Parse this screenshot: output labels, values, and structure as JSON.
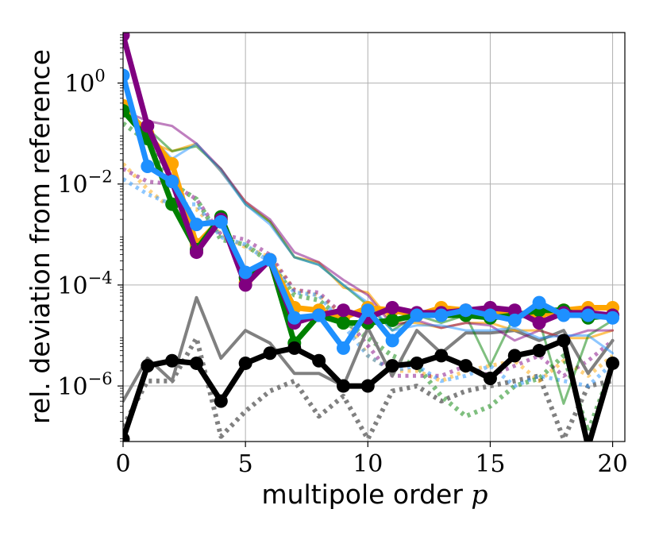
{
  "chart_data": {
    "type": "line",
    "xlabel": "multipole order",
    "xlabel_variable": "p",
    "ylabel": "rel. deviation from reference",
    "yscale": "log",
    "xlim": [
      0,
      20.5
    ],
    "ylim_log10": [
      -7.1,
      1.0
    ],
    "grid": true,
    "x_ticks": [
      0,
      5,
      10,
      15,
      20
    ],
    "x_tick_labels": [
      "0",
      "5",
      "10",
      "15",
      "20"
    ],
    "y_ticks_log10": [
      0,
      -2,
      -4,
      -6
    ],
    "y_tick_labels": [
      {
        "base": "10",
        "exp": "0"
      },
      {
        "base": "10",
        "exp": "−2"
      },
      {
        "base": "10",
        "exp": "−4"
      },
      {
        "base": "10",
        "exp": "−6"
      }
    ],
    "x": [
      0,
      1,
      2,
      3,
      4,
      5,
      6,
      7,
      8,
      9,
      10,
      11,
      12,
      13,
      14,
      15,
      16,
      17,
      18,
      19,
      20
    ],
    "series": [
      {
        "color": "#808080",
        "style": "dotted",
        "width": 6,
        "opacity": 1,
        "marker": false,
        "log10_values": [
          -6.8,
          -5.9,
          -5.9,
          -5.05,
          -7.0,
          -6.5,
          -6.1,
          -5.9,
          -6.6,
          -6.2,
          -7.05,
          -6.1,
          -6.0,
          -6.3,
          -6.1,
          -6.0,
          -5.9,
          -5.8,
          -7.05,
          -6.0,
          -5.9
        ]
      },
      {
        "color": "#ffa500",
        "style": "dotted",
        "width": 5,
        "opacity": 0.5,
        "marker": false,
        "log10_values": [
          -1.6,
          -2.1,
          -2.5,
          -2.5,
          -3.0,
          -3.25,
          -3.45,
          -4.1,
          -4.2,
          -4.6,
          -5.4,
          -5.7,
          -5.7,
          -5.9,
          -5.7,
          -5.6,
          -5.5,
          -5.9,
          -5.5,
          -5.8,
          -5.4
        ]
      },
      {
        "color": "#008000",
        "style": "dotted",
        "width": 6,
        "opacity": 0.5,
        "marker": false,
        "log10_values": [
          -0.8,
          -1.15,
          -2.0,
          -2.3,
          -3.1,
          -3.2,
          -3.55,
          -4.2,
          -4.3,
          -4.7,
          -5.05,
          -5.4,
          -5.6,
          -6.2,
          -6.6,
          -6.4,
          -6.0,
          -5.85,
          -5.4,
          -6.9,
          -5.6
        ]
      },
      {
        "color": "#800080",
        "style": "dotted",
        "width": 5,
        "opacity": 0.5,
        "marker": false,
        "log10_values": [
          -1.7,
          -1.95,
          -2.0,
          -2.3,
          -3.0,
          -3.1,
          -3.4,
          -4.1,
          -4.15,
          -4.6,
          -5.2,
          -5.8,
          -5.8,
          -5.8,
          -5.6,
          -5.8,
          -5.6,
          -5.4,
          -5.8,
          -5.5,
          -5.1
        ]
      },
      {
        "color": "#1e90ff",
        "style": "dotted",
        "width": 5,
        "opacity": 0.5,
        "marker": false,
        "log10_values": [
          -1.9,
          -2.2,
          -2.4,
          -2.4,
          -3.05,
          -3.2,
          -3.55,
          -4.15,
          -4.2,
          -4.8,
          -5.4,
          -5.7,
          -5.6,
          -5.9,
          -5.8,
          -5.6,
          -6.0,
          -5.8,
          -5.9,
          -6.0,
          -5.55
        ]
      },
      {
        "color": "#808080",
        "style": "solid",
        "width": 4,
        "opacity": 1,
        "marker": false,
        "log10_values": [
          -6.3,
          -5.45,
          -5.9,
          -4.25,
          -5.45,
          -4.9,
          -5.15,
          -5.75,
          -5.75,
          -6.0,
          -4.85,
          -5.8,
          -4.9,
          -5.35,
          -4.95,
          -4.95,
          -4.9,
          -5.1,
          -4.9,
          -5.75,
          -5.1
        ]
      },
      {
        "color": "#ffa500",
        "style": "solid",
        "width": 3,
        "opacity": 0.65,
        "marker": false,
        "log10_values": [
          -0.4,
          -1.15,
          -1.35,
          -1.2,
          -1.75,
          -2.35,
          -2.75,
          -3.45,
          -3.55,
          -4.05,
          -4.15,
          -4.75,
          -4.75,
          -4.85,
          -4.75,
          -4.75,
          -4.9,
          -4.9,
          -5.05,
          -5.05,
          -4.9
        ]
      },
      {
        "color": "#008000",
        "style": "solid",
        "width": 3,
        "opacity": 0.5,
        "marker": false,
        "log10_values": [
          -0.5,
          -0.9,
          -1.35,
          -1.25,
          -1.7,
          -2.4,
          -2.75,
          -3.45,
          -3.6,
          -4.0,
          -4.4,
          -4.9,
          -4.6,
          -4.75,
          -4.6,
          -5.6,
          -4.6,
          -4.7,
          -6.35,
          -5.0,
          -4.7
        ]
      },
      {
        "color": "#800080",
        "style": "solid",
        "width": 3,
        "opacity": 0.5,
        "marker": false,
        "log10_values": [
          -0.55,
          -0.75,
          -0.85,
          -1.2,
          -1.7,
          -2.35,
          -2.7,
          -3.35,
          -3.55,
          -3.9,
          -4.2,
          -4.8,
          -4.7,
          -4.85,
          -4.75,
          -4.8,
          -5.1,
          -4.9,
          -5.05,
          -4.9,
          -4.9
        ]
      },
      {
        "color": "#1e90ff",
        "style": "solid",
        "width": 3,
        "opacity": 0.5,
        "marker": false,
        "log10_values": [
          -0.45,
          -1.0,
          -1.5,
          -1.2,
          -1.75,
          -2.4,
          -2.8,
          -3.45,
          -3.6,
          -4.0,
          -4.35,
          -4.9,
          -4.8,
          -4.8,
          -4.9,
          -4.9,
          -4.85,
          -5.05,
          -5.0,
          -5.0,
          -5.35
        ]
      },
      {
        "color": "#ffa500",
        "style": "solid",
        "width": 7,
        "opacity": 1,
        "marker": true,
        "log10_values": [
          -0.45,
          -1.0,
          -1.6,
          -3.2,
          -2.7,
          -3.95,
          -3.5,
          -4.45,
          -4.5,
          -4.65,
          -4.45,
          -4.5,
          -4.6,
          -4.45,
          -4.5,
          -4.55,
          -4.55,
          -4.6,
          -4.5,
          -4.45,
          -4.45
        ]
      },
      {
        "color": "#008000",
        "style": "solid",
        "width": 7,
        "opacity": 1,
        "marker": true,
        "log10_values": [
          -0.55,
          -1.1,
          -2.4,
          -3.3,
          -2.65,
          -3.85,
          -3.5,
          -5.15,
          -4.6,
          -4.75,
          -4.75,
          -4.7,
          -4.6,
          -4.6,
          -4.6,
          -4.65,
          -4.6,
          -4.5,
          -4.5,
          -4.65,
          -4.6
        ]
      },
      {
        "color": "#800080",
        "style": "solid",
        "width": 7,
        "opacity": 1,
        "marker": true,
        "log10_values": [
          0.95,
          -0.85,
          -1.95,
          -3.35,
          -2.7,
          -4.0,
          -3.5,
          -4.75,
          -4.6,
          -4.5,
          -4.65,
          -4.45,
          -4.55,
          -4.55,
          -4.5,
          -4.45,
          -4.5,
          -4.75,
          -4.55,
          -4.55,
          -4.6
        ]
      },
      {
        "color": "#1e90ff",
        "style": "solid",
        "width": 7,
        "opacity": 1,
        "marker": true,
        "log10_values": [
          0.15,
          -1.65,
          -1.95,
          -2.8,
          -2.75,
          -3.75,
          -3.5,
          -4.65,
          -4.6,
          -5.25,
          -4.5,
          -5.1,
          -4.6,
          -4.6,
          -4.5,
          -4.6,
          -4.7,
          -4.35,
          -4.6,
          -4.6,
          -4.65
        ]
      },
      {
        "color": "#000000",
        "style": "solid",
        "width": 7,
        "opacity": 1,
        "marker": true,
        "log10_values": [
          -7.05,
          -5.6,
          -5.5,
          -5.55,
          -6.3,
          -5.55,
          -5.35,
          -5.25,
          -5.5,
          -6.0,
          -6.0,
          -5.6,
          -5.55,
          -5.4,
          -5.6,
          -5.85,
          -5.4,
          -5.3,
          -5.1,
          -7.2,
          -5.55
        ]
      }
    ]
  }
}
